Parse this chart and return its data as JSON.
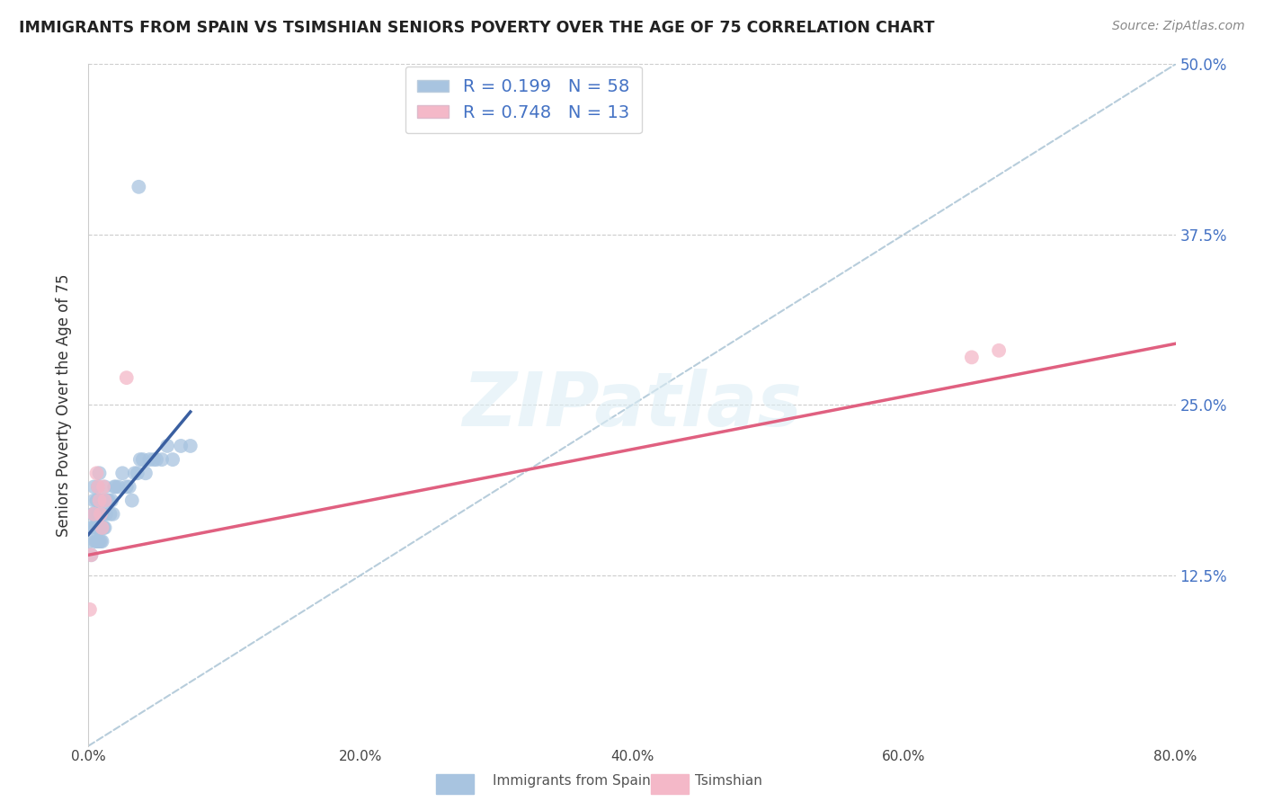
{
  "title": "IMMIGRANTS FROM SPAIN VS TSIMSHIAN SENIORS POVERTY OVER THE AGE OF 75 CORRELATION CHART",
  "source": "Source: ZipAtlas.com",
  "ylabel": "Seniors Poverty Over the Age of 75",
  "xlim": [
    0.0,
    0.8
  ],
  "ylim": [
    0.0,
    0.5
  ],
  "xtick_vals": [
    0.0,
    0.2,
    0.4,
    0.6,
    0.8
  ],
  "xtick_labels": [
    "0.0%",
    "20.0%",
    "40.0%",
    "60.0%",
    "80.0%"
  ],
  "ytick_vals": [
    0.125,
    0.25,
    0.375,
    0.5
  ],
  "ytick_labels": [
    "12.5%",
    "25.0%",
    "37.5%",
    "50.0%"
  ],
  "legend1_R": "0.199",
  "legend1_N": "58",
  "legend2_R": "0.748",
  "legend2_N": "13",
  "blue_dot_color": "#a8c4e0",
  "pink_dot_color": "#f4b8c8",
  "blue_line_color": "#3a5fa0",
  "pink_line_color": "#e06080",
  "diag_color": "#b0c8d8",
  "text_color_blue": "#4472c4",
  "legend_label1": "Immigrants from Spain",
  "legend_label2": "Tsimshian",
  "watermark_text": "ZIPatlas",
  "blue_x": [
    0.001,
    0.002,
    0.002,
    0.003,
    0.003,
    0.004,
    0.004,
    0.004,
    0.005,
    0.005,
    0.005,
    0.006,
    0.006,
    0.006,
    0.007,
    0.007,
    0.007,
    0.007,
    0.008,
    0.008,
    0.008,
    0.008,
    0.009,
    0.009,
    0.009,
    0.01,
    0.01,
    0.011,
    0.011,
    0.012,
    0.012,
    0.013,
    0.014,
    0.015,
    0.016,
    0.017,
    0.018,
    0.019,
    0.02,
    0.022,
    0.025,
    0.028,
    0.03,
    0.032,
    0.034,
    0.036,
    0.038,
    0.04,
    0.042,
    0.045,
    0.048,
    0.05,
    0.054,
    0.058,
    0.062,
    0.068,
    0.075,
    0.037
  ],
  "blue_y": [
    0.15,
    0.14,
    0.16,
    0.16,
    0.17,
    0.17,
    0.18,
    0.19,
    0.15,
    0.16,
    0.17,
    0.15,
    0.16,
    0.18,
    0.15,
    0.16,
    0.17,
    0.19,
    0.15,
    0.16,
    0.18,
    0.2,
    0.15,
    0.16,
    0.18,
    0.15,
    0.17,
    0.16,
    0.18,
    0.16,
    0.19,
    0.17,
    0.18,
    0.18,
    0.17,
    0.18,
    0.17,
    0.19,
    0.19,
    0.19,
    0.2,
    0.19,
    0.19,
    0.18,
    0.2,
    0.2,
    0.21,
    0.21,
    0.2,
    0.21,
    0.21,
    0.21,
    0.21,
    0.22,
    0.21,
    0.22,
    0.22,
    0.41
  ],
  "pink_x": [
    0.001,
    0.002,
    0.004,
    0.006,
    0.007,
    0.008,
    0.009,
    0.01,
    0.011,
    0.012,
    0.028,
    0.65,
    0.67
  ],
  "pink_y": [
    0.1,
    0.14,
    0.17,
    0.2,
    0.19,
    0.18,
    0.17,
    0.16,
    0.19,
    0.18,
    0.27,
    0.285,
    0.29
  ],
  "blue_line_x": [
    0.0,
    0.075
  ],
  "blue_line_y_start": 0.155,
  "blue_line_y_end": 0.245,
  "pink_line_x": [
    0.0,
    0.8
  ],
  "pink_line_y_start": 0.14,
  "pink_line_y_end": 0.295
}
